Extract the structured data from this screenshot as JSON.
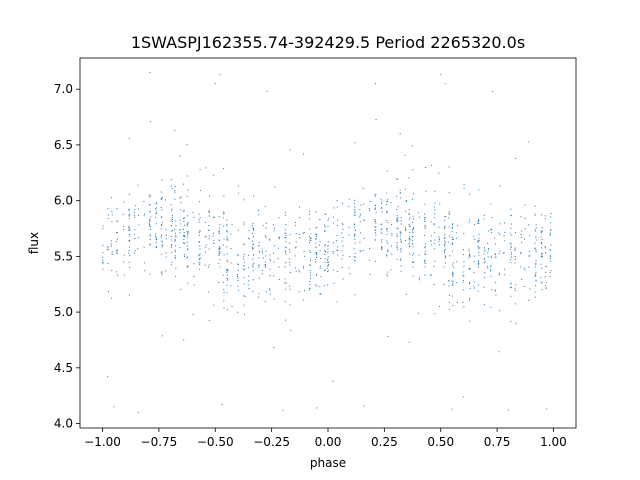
{
  "chart_data": {
    "type": "scatter",
    "title": "1SWASPJ162355.74-392429.5 Period 2265320.0s",
    "xlabel": "phase",
    "ylabel": "flux",
    "xlim": [
      -1.1,
      1.1
    ],
    "ylim": [
      3.96,
      7.28
    ],
    "xticks": [
      -1.0,
      -0.75,
      -0.5,
      -0.25,
      0.0,
      0.25,
      0.5,
      0.75,
      1.0
    ],
    "xtick_labels": [
      "−1.00",
      "−0.75",
      "−0.50",
      "−0.25",
      "0.00",
      "0.25",
      "0.50",
      "0.75",
      "1.00"
    ],
    "yticks": [
      4.0,
      4.5,
      5.0,
      5.5,
      6.0,
      6.5,
      7.0
    ],
    "ytick_labels": [
      "4.0",
      "4.5",
      "5.0",
      "5.5",
      "6.0",
      "6.5",
      "7.0"
    ],
    "grid": false,
    "marker_color": "#1f77b4",
    "series_shape": {
      "phase_range": [
        -1.0,
        1.0
      ],
      "flux_min": 4.1,
      "flux_max": 7.15,
      "brighter_phase_centers": [
        -0.75,
        0.25
      ],
      "brighter_level": 5.72,
      "fainter_phase_centers": [
        -0.3,
        0.7
      ],
      "fainter_level": 5.48,
      "mean_level": 5.6,
      "scatter": 0.2,
      "outliers": [
        [
          -0.48,
          7.13
        ],
        [
          0.5,
          7.13
        ],
        [
          -0.5,
          7.05
        ],
        [
          0.52,
          7.05
        ],
        [
          -0.27,
          6.98
        ],
        [
          0.73,
          6.98
        ],
        [
          -0.47,
          4.17
        ],
        [
          0.55,
          4.13
        ],
        [
          -0.2,
          4.12
        ],
        [
          0.8,
          4.12
        ],
        [
          -0.95,
          4.15
        ],
        [
          0.97,
          4.13
        ],
        [
          -0.68,
          6.63
        ],
        [
          0.32,
          6.6
        ],
        [
          -0.05,
          4.14
        ],
        [
          0.6,
          4.24
        ]
      ]
    }
  }
}
